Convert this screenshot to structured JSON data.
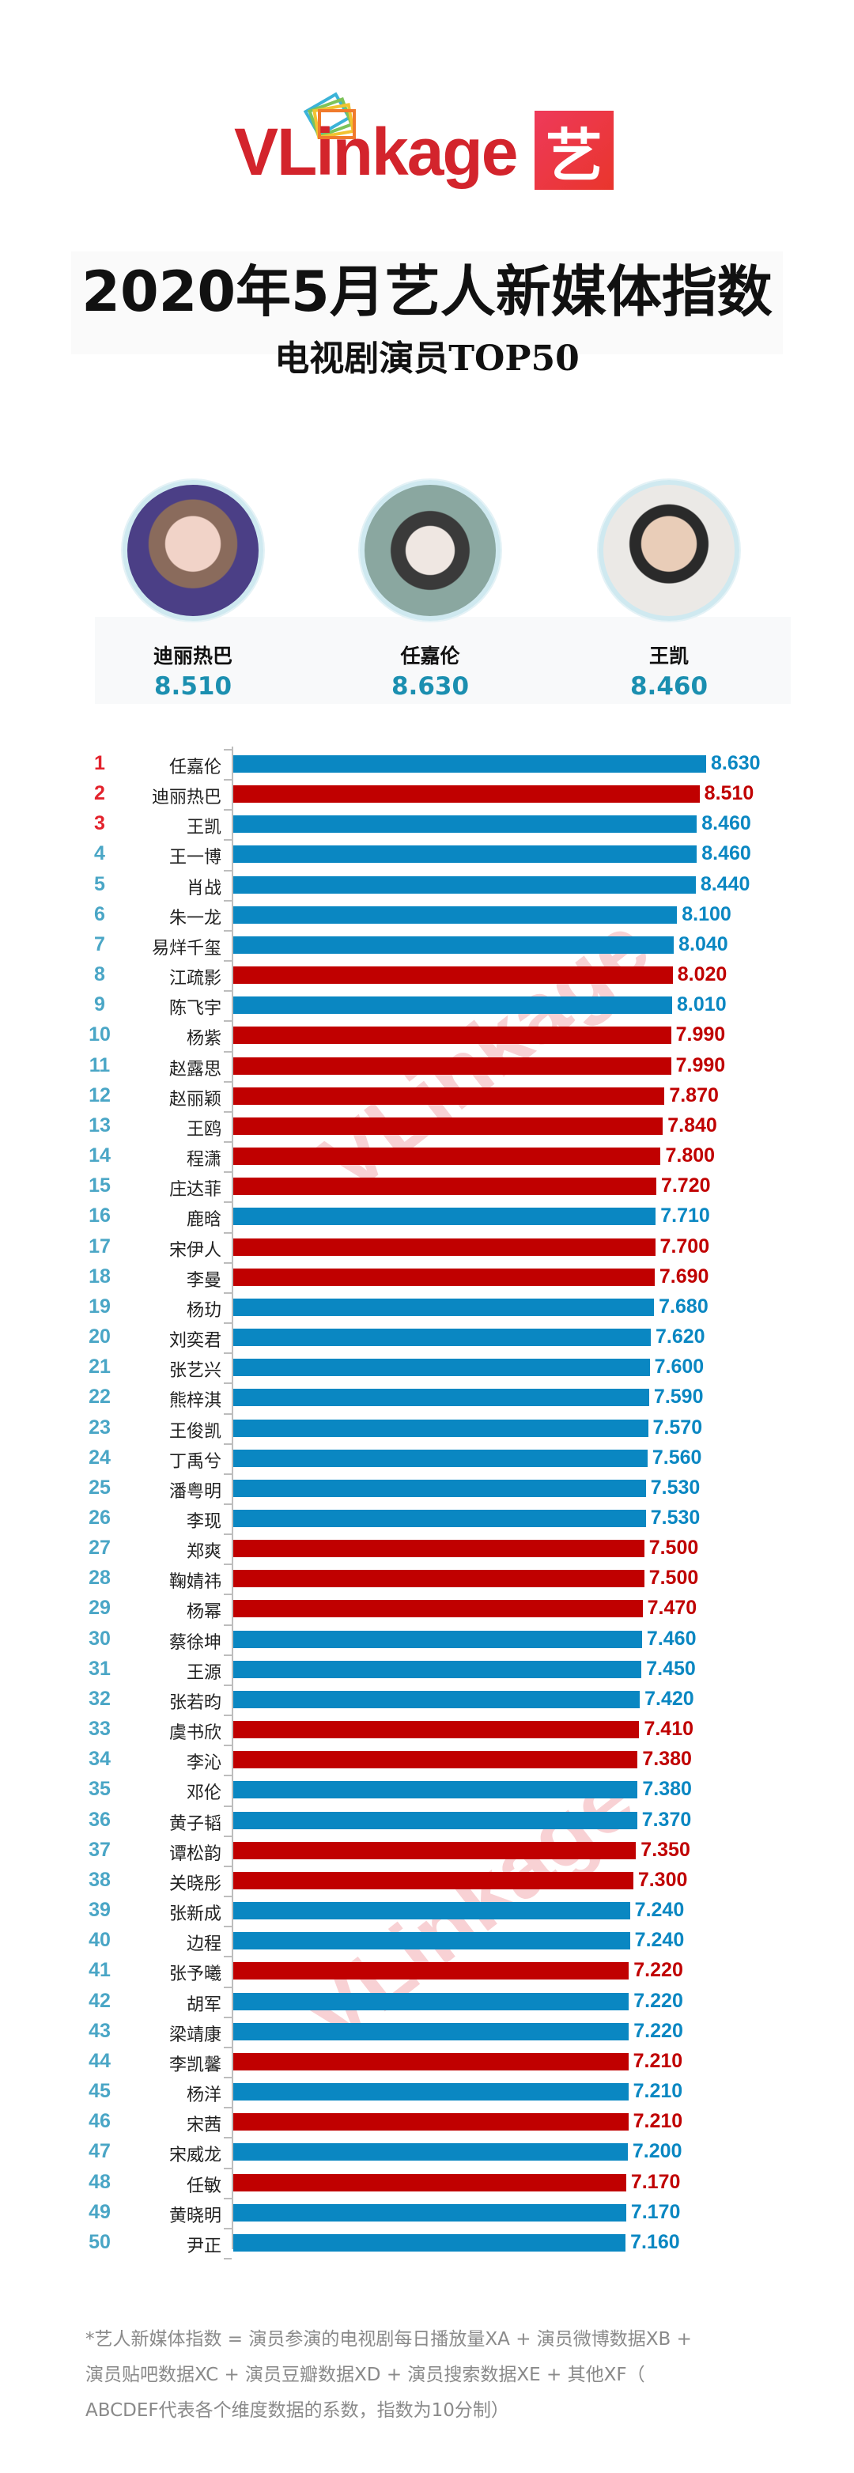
{
  "header": {
    "logo_text": "VLinkage",
    "partner_logo_char": "艺",
    "title": "2020年5月艺人新媒体指数",
    "subtitle": "电视剧演员TOP50"
  },
  "top3": [
    {
      "name": "迪丽热巴",
      "score": "8.510",
      "avatar_icon": "female-portrait"
    },
    {
      "name": "任嘉伦",
      "score": "8.630",
      "avatar_icon": "male-portrait-costume"
    },
    {
      "name": "王凯",
      "score": "8.460",
      "avatar_icon": "male-portrait-suit"
    }
  ],
  "colors": {
    "blue": "#0a87c2",
    "red": "#c00000",
    "rank_top": "#e3222c",
    "rank_other": "#4aa6c6",
    "score_teal": "#1b8fb0"
  },
  "chart_data": {
    "type": "bar",
    "orientation": "horizontal",
    "xlim": [
      0,
      8.63
    ],
    "grid": false,
    "ranks": [
      "1",
      "2",
      "3",
      "4",
      "5",
      "6",
      "7",
      "8",
      "9",
      "10",
      "11",
      "12",
      "13",
      "14",
      "15",
      "16",
      "17",
      "18",
      "19",
      "20",
      "21",
      "22",
      "23",
      "24",
      "25",
      "26",
      "27",
      "28",
      "29",
      "30",
      "31",
      "32",
      "33",
      "34",
      "35",
      "36",
      "37",
      "38",
      "39",
      "40",
      "41",
      "42",
      "43",
      "44",
      "45",
      "46",
      "47",
      "48",
      "49",
      "50"
    ],
    "categories": [
      "任嘉伦",
      "迪丽热巴",
      "王凯",
      "王一博",
      "肖战",
      "朱一龙",
      "易烊千玺",
      "江疏影",
      "陈飞宇",
      "杨紫",
      "赵露思",
      "赵丽颖",
      "王鸥",
      "程潇",
      "庄达菲",
      "鹿晗",
      "宋伊人",
      "李曼",
      "杨玏",
      "刘奕君",
      "张艺兴",
      "熊梓淇",
      "王俊凯",
      "丁禹兮",
      "潘粤明",
      "李现",
      "郑爽",
      "鞠婧祎",
      "杨幂",
      "蔡徐坤",
      "王源",
      "张若昀",
      "虞书欣",
      "李沁",
      "邓伦",
      "黄子韬",
      "谭松韵",
      "关晓彤",
      "张新成",
      "边程",
      "张予曦",
      "胡军",
      "梁靖康",
      "李凯馨",
      "杨洋",
      "宋茜",
      "宋威龙",
      "任敏",
      "黄晓明",
      "尹正"
    ],
    "values": [
      8.63,
      8.51,
      8.46,
      8.46,
      8.44,
      8.1,
      8.04,
      8.02,
      8.01,
      7.99,
      7.99,
      7.87,
      7.84,
      7.8,
      7.72,
      7.71,
      7.7,
      7.69,
      7.68,
      7.62,
      7.6,
      7.59,
      7.57,
      7.56,
      7.53,
      7.53,
      7.5,
      7.5,
      7.47,
      7.46,
      7.45,
      7.42,
      7.41,
      7.38,
      7.38,
      7.37,
      7.35,
      7.3,
      7.24,
      7.24,
      7.22,
      7.22,
      7.22,
      7.21,
      7.21,
      7.21,
      7.2,
      7.17,
      7.17,
      7.16
    ],
    "labels": [
      "8.630",
      "8.510",
      "8.460",
      "8.460",
      "8.440",
      "8.100",
      "8.040",
      "8.020",
      "8.010",
      "7.990",
      "7.990",
      "7.870",
      "7.840",
      "7.800",
      "7.720",
      "7.710",
      "7.700",
      "7.690",
      "7.680",
      "7.620",
      "7.600",
      "7.590",
      "7.570",
      "7.560",
      "7.530",
      "7.530",
      "7.500",
      "7.500",
      "7.470",
      "7.460",
      "7.450",
      "7.420",
      "7.410",
      "7.380",
      "7.380",
      "7.370",
      "7.350",
      "7.300",
      "7.240",
      "7.240",
      "7.220",
      "7.220",
      "7.220",
      "7.210",
      "7.210",
      "7.210",
      "7.200",
      "7.170",
      "7.170",
      "7.160"
    ],
    "bar_colors": [
      "blue",
      "red",
      "blue",
      "blue",
      "blue",
      "blue",
      "blue",
      "red",
      "blue",
      "red",
      "red",
      "red",
      "red",
      "red",
      "red",
      "blue",
      "red",
      "red",
      "blue",
      "blue",
      "blue",
      "blue",
      "blue",
      "blue",
      "blue",
      "blue",
      "red",
      "red",
      "red",
      "blue",
      "blue",
      "blue",
      "red",
      "red",
      "blue",
      "blue",
      "red",
      "red",
      "blue",
      "blue",
      "red",
      "blue",
      "blue",
      "red",
      "blue",
      "red",
      "blue",
      "red",
      "blue",
      "blue"
    ]
  },
  "watermark_text": "VLinkage",
  "footnote": [
    "*艺人新媒体指数 = 演员参演的电视剧每日播放量XA + 演员微博数据XB +",
    "演员贴吧数据XC + 演员豆瓣数据XD + 演员搜索数据XE + 其他XF（",
    "ABCDEF代表各个维度数据的系数，指数为10分制）"
  ]
}
